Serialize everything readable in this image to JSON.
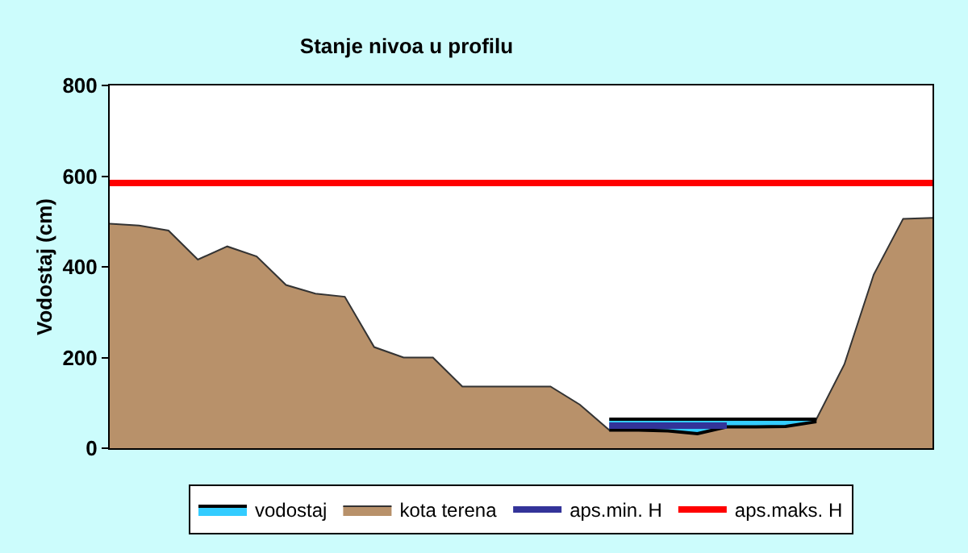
{
  "chart_data": {
    "type": "area",
    "title": "Stanje nivoa u profilu",
    "ylabel": "Vodostaj (cm)",
    "categories": [
      null,
      null,
      null,
      null,
      null,
      null,
      null,
      null,
      null,
      null,
      null,
      null,
      null,
      null,
      null,
      null,
      null,
      null,
      null,
      null,
      null,
      null,
      null,
      null,
      null,
      null,
      null,
      null,
      null
    ],
    "series": [
      {
        "name": "vodostaj",
        "color": "#33ccff",
        "values": [
          null,
          null,
          null,
          null,
          null,
          null,
          null,
          null,
          null,
          null,
          null,
          null,
          null,
          null,
          null,
          null,
          null,
          64,
          64,
          64,
          64,
          64,
          64,
          64,
          64,
          null,
          null,
          null,
          null
        ]
      },
      {
        "name": "kota terena",
        "color": "#b8916a",
        "values": [
          495,
          491,
          480,
          416,
          445,
          423,
          360,
          341,
          334,
          223,
          200,
          200,
          136,
          136,
          136,
          136,
          96,
          40,
          40,
          38,
          32,
          47,
          47,
          48,
          58,
          185,
          383,
          506,
          508
        ]
      },
      {
        "name": "aps.min. H",
        "type": "line",
        "color": "#333399",
        "values": [
          null,
          null,
          null,
          null,
          null,
          null,
          null,
          null,
          null,
          null,
          null,
          null,
          null,
          null,
          null,
          null,
          null,
          50,
          50,
          50,
          50,
          50,
          null,
          null,
          null,
          null,
          null,
          null,
          null
        ]
      },
      {
        "name": "aps.maks. H",
        "type": "line",
        "color": "#ff0000",
        "values": [
          585,
          585,
          585,
          585,
          585,
          585,
          585,
          585,
          585,
          585,
          585,
          585,
          585,
          585,
          585,
          585,
          585,
          585,
          585,
          585,
          585,
          585,
          585,
          585,
          585,
          585,
          585,
          585,
          585
        ]
      }
    ],
    "ylim": [
      0,
      800
    ],
    "yticks": [
      0,
      200,
      400,
      600,
      800
    ],
    "grid": false,
    "legend": "bottom",
    "marker": "none",
    "line_style": "solid",
    "tick_labels": "y"
  }
}
